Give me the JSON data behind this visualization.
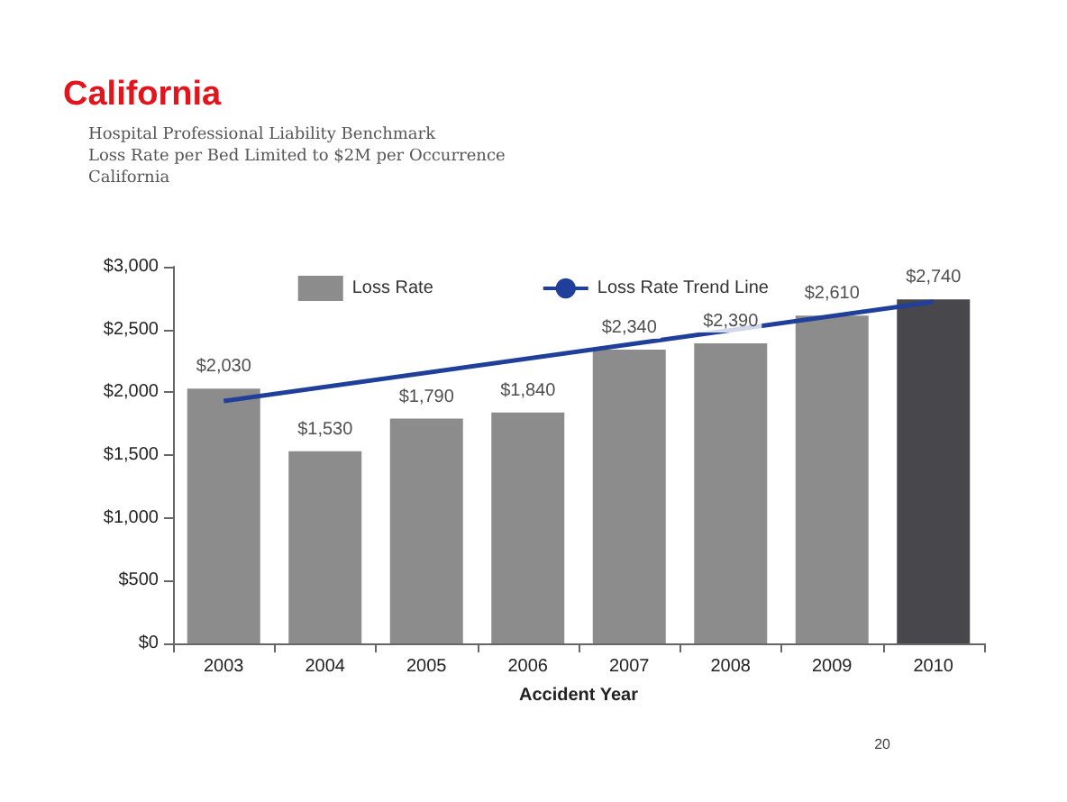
{
  "chart_data": {
    "type": "bar",
    "title": "California",
    "subtitle": "Hospital Professional Liability Benchmark\nLoss Rate per Bed Limited to $2M per Occurrence\nCalifornia",
    "xlabel": "Accident Year",
    "categories": [
      "2003",
      "2004",
      "2005",
      "2006",
      "2007",
      "2008",
      "2009",
      "2010"
    ],
    "series": [
      {
        "name": "Loss Rate",
        "colors": [
          "#8c8c8c",
          "#8c8c8c",
          "#8c8c8c",
          "#8c8c8c",
          "#8c8c8c",
          "#8c8c8c",
          "#8c8c8c",
          "#48474c"
        ],
        "values": [
          2030,
          1530,
          1790,
          1840,
          2340,
          2390,
          2610,
          2740
        ],
        "value_labels": [
          "$2,030",
          "$1,530",
          "$1,790",
          "$1,840",
          "$2,340",
          "$2,390",
          "$2,610",
          "$2,740"
        ]
      },
      {
        "name": "Loss Rate Trend Line",
        "type": "line",
        "color": "#1f3f9a",
        "values": [
          1930,
          null,
          null,
          null,
          null,
          null,
          null,
          2720
        ],
        "marker": "none"
      }
    ],
    "ylim": [
      0,
      3000
    ],
    "yticks": [
      {
        "value": 0,
        "label": "$0"
      },
      {
        "value": 500,
        "label": "$500"
      },
      {
        "value": 1000,
        "label": "$1,000"
      },
      {
        "value": 1500,
        "label": "$1,500"
      },
      {
        "value": 2000,
        "label": "$2,000"
      },
      {
        "value": 2500,
        "label": "$2,500"
      },
      {
        "value": 3000,
        "label": "$3,000"
      }
    ],
    "grid": false,
    "legend": "top",
    "annotations": [
      "20"
    ]
  }
}
